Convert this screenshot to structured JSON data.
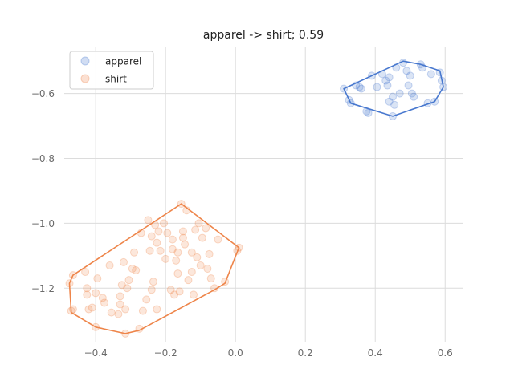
{
  "chart_data": {
    "type": "scatter",
    "title": "apparel -> shirt; 0.59",
    "xlabel": "",
    "ylabel": "",
    "xlim": [
      -0.49,
      0.65
    ],
    "ylim": [
      -1.365,
      -0.455
    ],
    "xticks": [
      -0.4,
      -0.2,
      0.0,
      0.2,
      0.4,
      0.6
    ],
    "yticks": [
      -0.6,
      -0.8,
      -1.0,
      -1.2
    ],
    "xtick_labels": [
      "−0.4",
      "−0.2",
      "0.0",
      "0.2",
      "0.4",
      "0.6"
    ],
    "ytick_labels": [
      "−0.6",
      "−0.8",
      "−1.0",
      "−1.2"
    ],
    "grid": true,
    "legend_position": "top-left",
    "series": [
      {
        "name": "apparel",
        "color": "#4878cf",
        "points": [
          [
            0.31,
            -0.585
          ],
          [
            0.325,
            -0.62
          ],
          [
            0.33,
            -0.63
          ],
          [
            0.345,
            -0.575
          ],
          [
            0.355,
            -0.58
          ],
          [
            0.36,
            -0.585
          ],
          [
            0.375,
            -0.655
          ],
          [
            0.38,
            -0.66
          ],
          [
            0.39,
            -0.545
          ],
          [
            0.405,
            -0.58
          ],
          [
            0.42,
            -0.54
          ],
          [
            0.43,
            -0.56
          ],
          [
            0.435,
            -0.575
          ],
          [
            0.44,
            -0.55
          ],
          [
            0.44,
            -0.625
          ],
          [
            0.45,
            -0.61
          ],
          [
            0.45,
            -0.67
          ],
          [
            0.455,
            -0.635
          ],
          [
            0.46,
            -0.52
          ],
          [
            0.47,
            -0.6
          ],
          [
            0.48,
            -0.505
          ],
          [
            0.49,
            -0.53
          ],
          [
            0.495,
            -0.575
          ],
          [
            0.5,
            -0.545
          ],
          [
            0.505,
            -0.6
          ],
          [
            0.51,
            -0.61
          ],
          [
            0.53,
            -0.51
          ],
          [
            0.535,
            -0.52
          ],
          [
            0.55,
            -0.63
          ],
          [
            0.56,
            -0.54
          ],
          [
            0.57,
            -0.625
          ],
          [
            0.585,
            -0.535
          ],
          [
            0.59,
            -0.56
          ],
          [
            0.595,
            -0.58
          ]
        ],
        "hull": [
          [
            0.31,
            -0.585
          ],
          [
            0.33,
            -0.63
          ],
          [
            0.45,
            -0.67
          ],
          [
            0.57,
            -0.625
          ],
          [
            0.595,
            -0.58
          ],
          [
            0.59,
            -0.555
          ],
          [
            0.585,
            -0.53
          ],
          [
            0.53,
            -0.51
          ],
          [
            0.48,
            -0.5
          ]
        ]
      },
      {
        "name": "shirt",
        "color": "#ee854a",
        "points": [
          [
            -0.475,
            -1.185
          ],
          [
            -0.47,
            -1.27
          ],
          [
            -0.465,
            -1.16
          ],
          [
            -0.465,
            -1.265
          ],
          [
            -0.43,
            -1.15
          ],
          [
            -0.425,
            -1.2
          ],
          [
            -0.425,
            -1.22
          ],
          [
            -0.42,
            -1.265
          ],
          [
            -0.41,
            -1.26
          ],
          [
            -0.4,
            -1.32
          ],
          [
            -0.4,
            -1.215
          ],
          [
            -0.395,
            -1.17
          ],
          [
            -0.38,
            -1.23
          ],
          [
            -0.375,
            -1.245
          ],
          [
            -0.36,
            -1.13
          ],
          [
            -0.355,
            -1.275
          ],
          [
            -0.335,
            -1.28
          ],
          [
            -0.33,
            -1.25
          ],
          [
            -0.33,
            -1.225
          ],
          [
            -0.325,
            -1.19
          ],
          [
            -0.32,
            -1.12
          ],
          [
            -0.315,
            -1.34
          ],
          [
            -0.315,
            -1.265
          ],
          [
            -0.31,
            -1.2
          ],
          [
            -0.305,
            -1.175
          ],
          [
            -0.295,
            -1.14
          ],
          [
            -0.29,
            -1.09
          ],
          [
            -0.285,
            -1.145
          ],
          [
            -0.275,
            -1.325
          ],
          [
            -0.27,
            -1.03
          ],
          [
            -0.265,
            -1.27
          ],
          [
            -0.255,
            -1.235
          ],
          [
            -0.25,
            -0.99
          ],
          [
            -0.245,
            -1.085
          ],
          [
            -0.24,
            -1.205
          ],
          [
            -0.24,
            -1.04
          ],
          [
            -0.235,
            -1.18
          ],
          [
            -0.23,
            -1.005
          ],
          [
            -0.225,
            -1.06
          ],
          [
            -0.225,
            -1.265
          ],
          [
            -0.22,
            -1.025
          ],
          [
            -0.215,
            -1.085
          ],
          [
            -0.205,
            -1.0
          ],
          [
            -0.2,
            -1.11
          ],
          [
            -0.195,
            -1.03
          ],
          [
            -0.185,
            -1.205
          ],
          [
            -0.18,
            -1.05
          ],
          [
            -0.18,
            -1.08
          ],
          [
            -0.175,
            -1.22
          ],
          [
            -0.17,
            -1.115
          ],
          [
            -0.165,
            -1.09
          ],
          [
            -0.165,
            -1.155
          ],
          [
            -0.16,
            -1.21
          ],
          [
            -0.155,
            -0.94
          ],
          [
            -0.15,
            -1.025
          ],
          [
            -0.15,
            -1.045
          ],
          [
            -0.145,
            -1.065
          ],
          [
            -0.14,
            -0.96
          ],
          [
            -0.135,
            -1.175
          ],
          [
            -0.125,
            -1.09
          ],
          [
            -0.125,
            -1.15
          ],
          [
            -0.12,
            -1.22
          ],
          [
            -0.115,
            -1.02
          ],
          [
            -0.11,
            -1.105
          ],
          [
            -0.105,
            -1.0
          ],
          [
            -0.1,
            -1.13
          ],
          [
            -0.095,
            -1.045
          ],
          [
            -0.085,
            -1.015
          ],
          [
            -0.08,
            -1.14
          ],
          [
            -0.075,
            -1.095
          ],
          [
            -0.07,
            -1.17
          ],
          [
            -0.06,
            -1.2
          ],
          [
            -0.05,
            -1.05
          ],
          [
            -0.03,
            -1.18
          ],
          [
            0.005,
            -1.085
          ],
          [
            0.01,
            -1.075
          ]
        ],
        "hull": [
          [
            -0.475,
            -1.185
          ],
          [
            -0.47,
            -1.275
          ],
          [
            -0.4,
            -1.32
          ],
          [
            -0.315,
            -1.34
          ],
          [
            -0.275,
            -1.33
          ],
          [
            -0.06,
            -1.205
          ],
          [
            -0.03,
            -1.185
          ],
          [
            0.01,
            -1.075
          ],
          [
            -0.155,
            -0.94
          ],
          [
            -0.465,
            -1.16
          ]
        ]
      }
    ]
  }
}
